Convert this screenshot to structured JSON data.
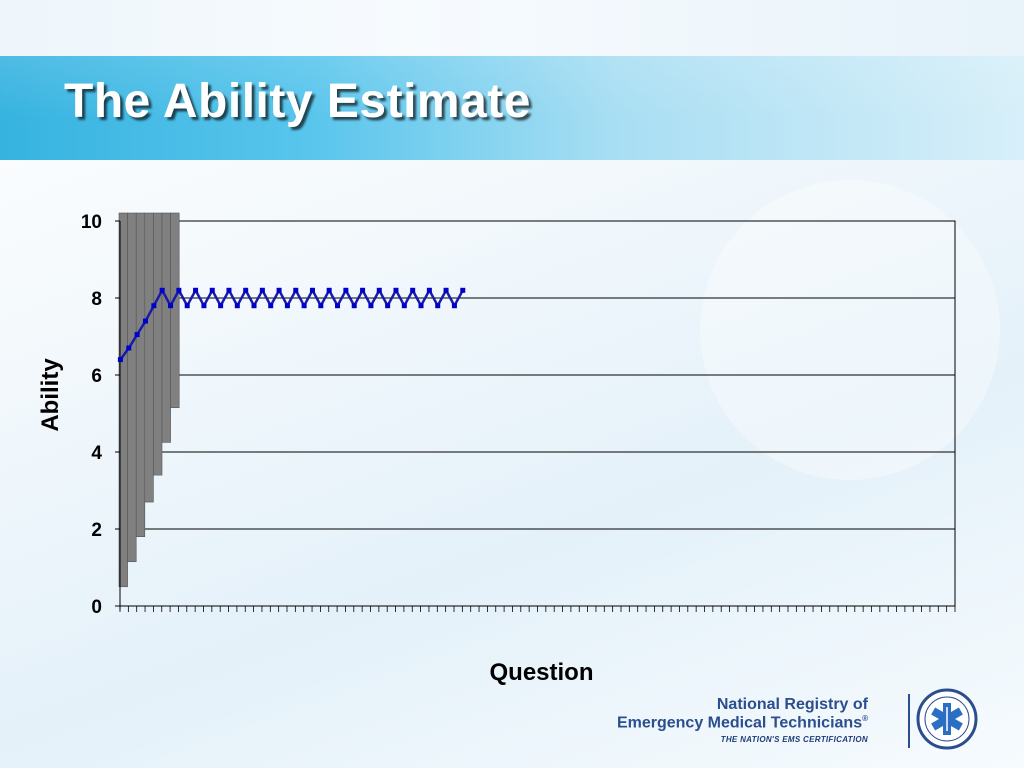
{
  "slide": {
    "title": "The Ability Estimate"
  },
  "logo": {
    "line1": "National Registry of",
    "line2": "Emergency Medical Technicians",
    "registered_mark": "®",
    "tagline": "THE NATION'S EMS CERTIFICATION",
    "seal_icon": "star-of-life-icon"
  },
  "chart_data": {
    "type": "bar",
    "title": "",
    "xlabel": "Question",
    "ylabel": "Ability",
    "ylim": [
      0,
      10
    ],
    "yticks": [
      0,
      2,
      4,
      6,
      8,
      10
    ],
    "x_tick_count": 100,
    "grid": true,
    "colors": {
      "bars": "#808080",
      "line": "#1a1aa8",
      "markers": "#0000cc",
      "grid": "#000000"
    },
    "series": [
      {
        "type": "bar",
        "values": [
          0.5,
          1.15,
          1.8,
          2.7,
          3.4,
          4.25,
          5.15
        ]
      },
      {
        "type": "line",
        "values": [
          6.4,
          6.7,
          7.05,
          7.4,
          7.8,
          8.2,
          7.8,
          8.2,
          7.8,
          8.2,
          7.8,
          8.2,
          7.8,
          8.2,
          7.8,
          8.2,
          7.8,
          8.2,
          7.8,
          8.2,
          7.8,
          8.2,
          7.8,
          8.2,
          7.8,
          8.2,
          7.8,
          8.2,
          7.8,
          8.2,
          7.8,
          8.2,
          7.8,
          8.2,
          7.8,
          8.2,
          7.8,
          8.2,
          7.8,
          8.2,
          7.8,
          8.2
        ]
      }
    ]
  }
}
